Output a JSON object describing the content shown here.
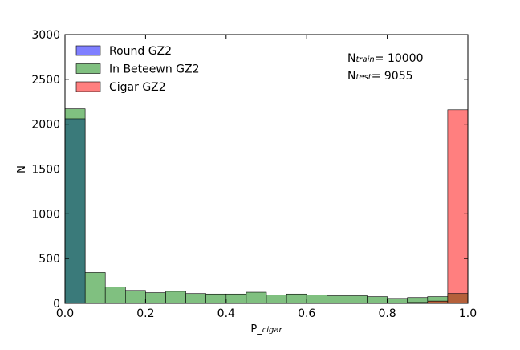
{
  "chart_data": {
    "type": "bar",
    "xlabel": "P_cigar",
    "xlabel_prefix": "P_",
    "xlabel_sub": "cigar",
    "ylabel": "N",
    "xlim": [
      0.0,
      1.0
    ],
    "ylim": [
      0,
      3000
    ],
    "x_ticks": [
      "0.0",
      "0.2",
      "0.4",
      "0.6",
      "0.8",
      "1.0"
    ],
    "y_ticks": [
      "0",
      "500",
      "1000",
      "1500",
      "2000",
      "2500",
      "3000"
    ],
    "bin_edges": [
      0.0,
      0.05,
      0.1,
      0.15,
      0.2,
      0.25,
      0.3,
      0.35,
      0.4,
      0.45,
      0.5,
      0.55,
      0.6,
      0.65,
      0.7,
      0.75,
      0.8,
      0.85,
      0.9,
      0.95,
      1.0
    ],
    "series": [
      {
        "name": "Round GZ2",
        "color": "#7f7fff",
        "values": [
          2060,
          0,
          0,
          0,
          0,
          0,
          0,
          0,
          0,
          0,
          0,
          0,
          0,
          0,
          0,
          0,
          0,
          0,
          0,
          0
        ]
      },
      {
        "name": "In Beteewn GZ2",
        "color": "#80c080",
        "values": [
          2170,
          345,
          185,
          145,
          120,
          135,
          110,
          105,
          105,
          125,
          95,
          105,
          95,
          85,
          85,
          75,
          55,
          65,
          75,
          110
        ]
      },
      {
        "name": "Cigar GZ2",
        "color": "#ff7f7f",
        "values": [
          0,
          0,
          0,
          0,
          0,
          0,
          0,
          0,
          0,
          0,
          0,
          0,
          0,
          0,
          0,
          0,
          0,
          10,
          25,
          2160
        ]
      }
    ],
    "legend_position": "top-left",
    "grid": false,
    "annotations": {
      "train_prefix": "N",
      "train_sub": "train",
      "train_value": "= 10000",
      "test_prefix": "N",
      "test_sub": "test",
      "test_value": "= 9055"
    }
  }
}
